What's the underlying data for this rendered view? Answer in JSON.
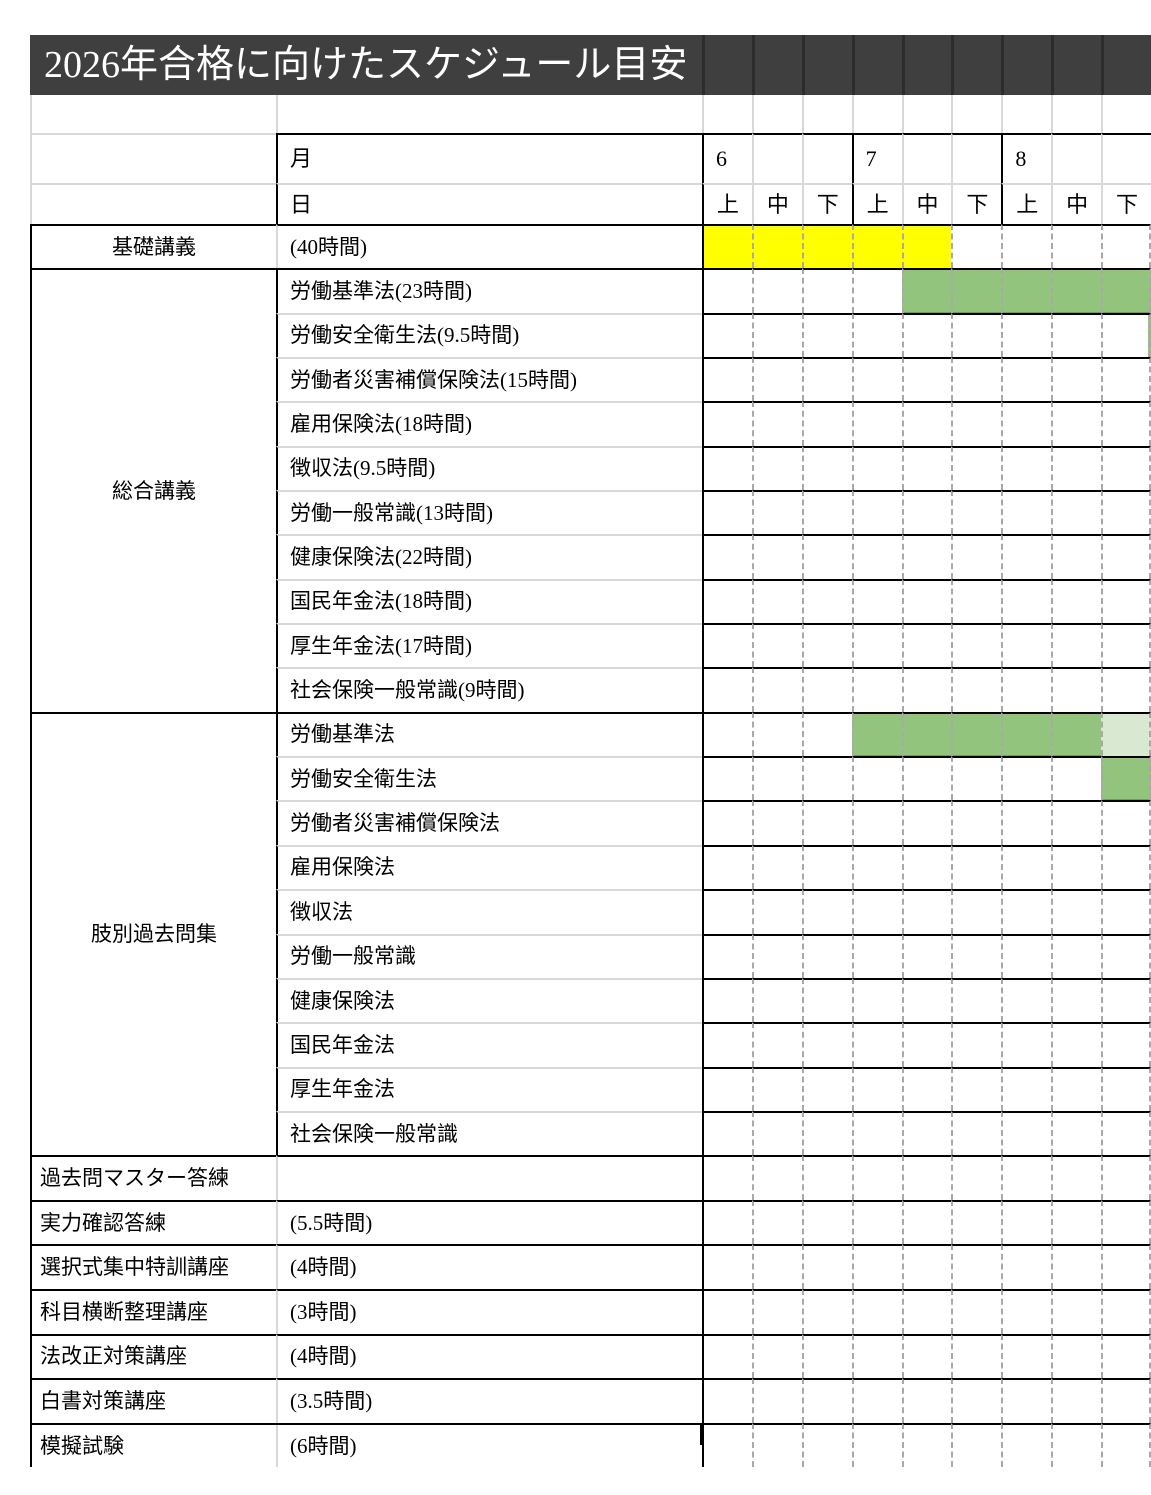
{
  "title": "2026年合格に向けたスケジュール目安",
  "colors": {
    "title_bg": "#3f3f3f",
    "title_separator": "#2c2c2c",
    "border": "#000000",
    "grid_light": "#d8d8d8",
    "grid_dash": "#a9a9a9",
    "bar_yellow": "#ffff00",
    "bar_green": "#92c47d",
    "bar_green_edge": "#6f9e53",
    "bar_light_green": "#d9e8d0"
  },
  "header": {
    "month_label": "月",
    "day_label": "日",
    "months": [
      {
        "num": "6"
      },
      {
        "num": "7"
      },
      {
        "num": "8"
      }
    ],
    "periods": [
      "上",
      "中",
      "下"
    ]
  },
  "rows": [
    {
      "category": "基礎講義",
      "category_span": 1,
      "category_align": "center",
      "label": "(40時間)",
      "section_start": true,
      "bars": [
        {
          "start": 0,
          "span": 5,
          "color": "bar_yellow"
        }
      ]
    },
    {
      "category": "総合講義",
      "category_span": 10,
      "category_align": "center",
      "label": "労働基準法(23時間)",
      "section_start": true,
      "bars": [
        {
          "start": 4,
          "span": 5,
          "color": "bar_green"
        }
      ]
    },
    {
      "label": "労働安全衛生法(9.5時間)",
      "bars": [
        {
          "start": 8.94,
          "span": 0.06,
          "color": "bar_green"
        }
      ]
    },
    {
      "label": "労働者災害補償保険法(15時間)",
      "bars": []
    },
    {
      "label": "雇用保険法(18時間)",
      "bars": []
    },
    {
      "label": "徴収法(9.5時間)",
      "bars": []
    },
    {
      "label": "労働一般常識(13時間)",
      "bars": []
    },
    {
      "label": "健康保険法(22時間)",
      "bars": []
    },
    {
      "label": "国民年金法(18時間)",
      "bars": []
    },
    {
      "label": "厚生年金法(17時間)",
      "bars": []
    },
    {
      "label": "社会保険一般常識(9時間)",
      "bars": []
    },
    {
      "category": "肢別過去問集",
      "category_span": 10,
      "category_align": "center",
      "label": "労働基準法",
      "section_start": true,
      "bars": [
        {
          "start": 3,
          "span": 5,
          "color": "bar_green"
        },
        {
          "start": 8,
          "span": 1,
          "color": "bar_light_green"
        }
      ]
    },
    {
      "label": "労働安全衛生法",
      "bars": [
        {
          "start": 8,
          "span": 1,
          "color": "bar_green"
        }
      ]
    },
    {
      "label": "労働者災害補償保険法",
      "bars": []
    },
    {
      "label": "雇用保険法",
      "bars": []
    },
    {
      "label": "徴収法",
      "bars": []
    },
    {
      "label": "労働一般常識",
      "bars": []
    },
    {
      "label": "健康保険法",
      "bars": []
    },
    {
      "label": "国民年金法",
      "bars": []
    },
    {
      "label": "厚生年金法",
      "bars": []
    },
    {
      "label": "社会保険一般常識",
      "bars": []
    },
    {
      "category": "過去問マスター答練",
      "category_span": 1,
      "category_align": "left",
      "label": "",
      "section_start": true,
      "bars": []
    },
    {
      "category": "実力確認答練",
      "category_span": 1,
      "category_align": "left",
      "label": "(5.5時間)",
      "section_start": true,
      "bars": []
    },
    {
      "category": "選択式集中特訓講座",
      "category_span": 1,
      "category_align": "left",
      "label": "(4時間)",
      "section_start": true,
      "bars": []
    },
    {
      "category": "科目横断整理講座",
      "category_span": 1,
      "category_align": "left",
      "label": "(3時間)",
      "section_start": true,
      "bars": []
    },
    {
      "category": "法改正対策講座",
      "category_span": 1,
      "category_align": "left",
      "label": "(4時間)",
      "section_start": true,
      "bars": []
    },
    {
      "category": "白書対策講座",
      "category_span": 1,
      "category_align": "left",
      "label": "(3.5時間)",
      "section_start": true,
      "bars": []
    },
    {
      "category": "模擬試験",
      "category_span": 1,
      "category_align": "left",
      "label": "(6時間)",
      "section_start": true,
      "bars": []
    }
  ]
}
